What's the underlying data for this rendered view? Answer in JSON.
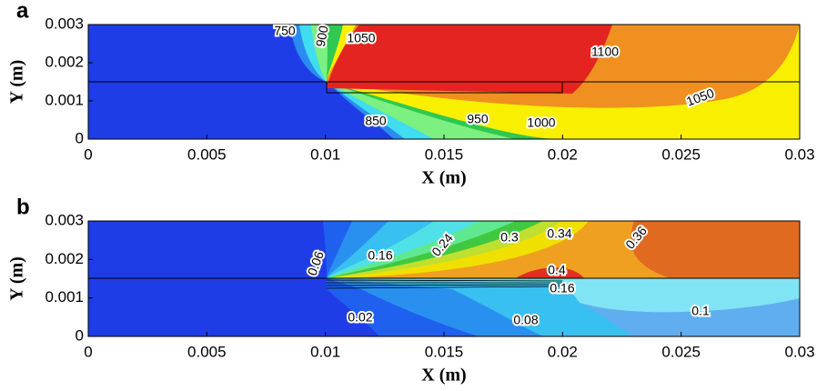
{
  "chart_data": [
    {
      "type": "contour",
      "panel": "a",
      "xlabel": "X (m)",
      "ylabel": "Y (m)",
      "xlim": [
        0,
        0.03
      ],
      "ylim": [
        0,
        0.003
      ],
      "xticks": [
        0,
        0.005,
        0.01,
        0.015,
        0.02,
        0.025,
        0.03
      ],
      "yticks": [
        0,
        0.001,
        0.002,
        0.003
      ],
      "contour_labels": [
        750,
        900,
        1050,
        1100,
        1050,
        850,
        950,
        1000
      ]
    },
    {
      "type": "contour",
      "panel": "b",
      "xlabel": "X (m)",
      "ylabel": "Y (m)",
      "xlim": [
        0,
        0.03
      ],
      "ylim": [
        0,
        0.003
      ],
      "xticks": [
        0,
        0.005,
        0.01,
        0.015,
        0.02,
        0.025,
        0.03
      ],
      "yticks": [
        0,
        0.001,
        0.002,
        0.003
      ],
      "contour_labels": [
        0.06,
        0.16,
        0.24,
        0.3,
        0.34,
        0.36,
        0.4,
        0.16,
        0.02,
        0.08,
        0.1
      ]
    }
  ]
}
